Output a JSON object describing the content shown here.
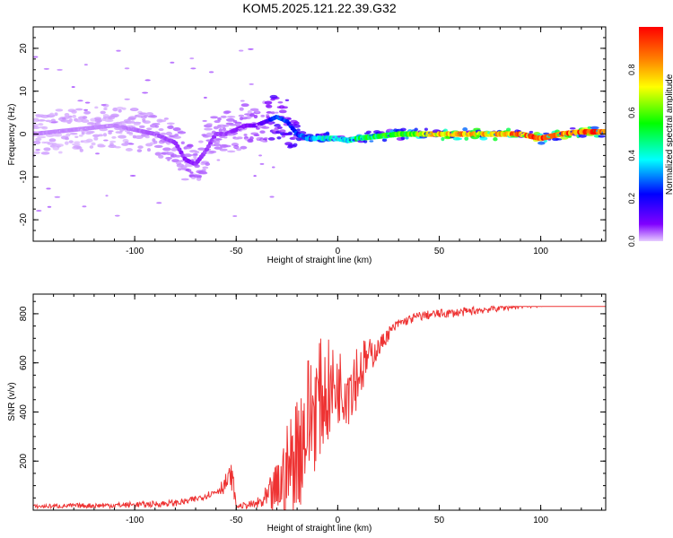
{
  "figure": {
    "title": "KOM5.2025.121.22.39.G32"
  },
  "chart_data": [
    {
      "type": "heatmap",
      "title": "KOM5.2025.121.22.39.G32",
      "xlabel": "Height of straight line (km)",
      "ylabel": "Frequency (Hz)",
      "xlim": [
        -150,
        132
      ],
      "ylim": [
        -25,
        25
      ],
      "xticks": [
        -100,
        -50,
        0,
        50,
        100
      ],
      "yticks": [
        -20,
        -10,
        0,
        10,
        20
      ],
      "colorbar": {
        "label": "Normalized spectral amplitude",
        "range": [
          0,
          1
        ],
        "ticks": [
          0.0,
          0.2,
          0.4,
          0.6,
          0.8
        ],
        "colormap": [
          "#e6ccff",
          "#8000ff",
          "#0000ff",
          "#00ffff",
          "#00ff00",
          "#ffff00",
          "#ff8000",
          "#ff0000"
        ]
      },
      "ridge": {
        "x": [
          -150,
          -130,
          -110,
          -90,
          -80,
          -75,
          -70,
          -65,
          -60,
          -55,
          -50,
          -45,
          -40,
          -35,
          -30,
          -25,
          -20,
          -15,
          -10,
          -5,
          0,
          5,
          10,
          20,
          30,
          40,
          50,
          60,
          70,
          80,
          90,
          100,
          110,
          120,
          132
        ],
        "frequency_hz": [
          0,
          1,
          2,
          0,
          -2,
          -6,
          -7,
          -4,
          0,
          0,
          1,
          2,
          2,
          3,
          4,
          3,
          0,
          -1,
          -1,
          -1,
          -1,
          -1.5,
          -1,
          -0.5,
          0,
          0,
          0,
          0,
          0,
          0,
          0,
          -1,
          0,
          0.5,
          0.5
        ],
        "amplitude": [
          0.05,
          0.05,
          0.05,
          0.08,
          0.1,
          0.12,
          0.12,
          0.1,
          0.1,
          0.1,
          0.12,
          0.12,
          0.15,
          0.2,
          0.35,
          0.3,
          0.3,
          0.35,
          0.4,
          0.45,
          0.45,
          0.45,
          0.5,
          0.55,
          0.55,
          0.7,
          0.75,
          0.8,
          0.75,
          0.8,
          0.85,
          0.9,
          0.85,
          0.9,
          0.9
        ]
      }
    },
    {
      "type": "line",
      "xlabel": "Height of straight line (km)",
      "ylabel": "SNR (v/v)",
      "xlim": [
        -150,
        132
      ],
      "ylim": [
        0,
        880
      ],
      "xticks": [
        -100,
        -50,
        0,
        50,
        100
      ],
      "yticks": [
        200,
        400,
        600,
        800
      ],
      "line_color": "#ee3333",
      "series": [
        {
          "x": [
            -150,
            -130,
            -110,
            -90,
            -80,
            -75,
            -70,
            -65,
            -60,
            -55,
            -52,
            -50,
            -45,
            -40,
            -35,
            -30,
            -25,
            -20,
            -15,
            -10,
            -5,
            0,
            5,
            10,
            15,
            20,
            25,
            30,
            40,
            50,
            60,
            70,
            80,
            90,
            100,
            110,
            120,
            132
          ],
          "y": [
            15,
            18,
            20,
            25,
            30,
            35,
            45,
            60,
            75,
            110,
            140,
            15,
            20,
            25,
            40,
            80,
            150,
            250,
            350,
            450,
            480,
            500,
            520,
            560,
            620,
            660,
            720,
            760,
            790,
            800,
            805,
            815,
            825,
            835,
            840,
            845,
            850,
            855
          ]
        }
      ],
      "noise_envelope": {
        "x": [
          -150,
          -60,
          -52,
          -50,
          -40,
          -35,
          -30,
          -25,
          -20,
          -15,
          -10,
          -5,
          0,
          5,
          10,
          15,
          20,
          30,
          132
        ],
        "half_width": [
          8,
          15,
          60,
          8,
          20,
          60,
          120,
          200,
          250,
          300,
          250,
          220,
          150,
          180,
          140,
          80,
          40,
          20,
          12
        ]
      }
    }
  ]
}
